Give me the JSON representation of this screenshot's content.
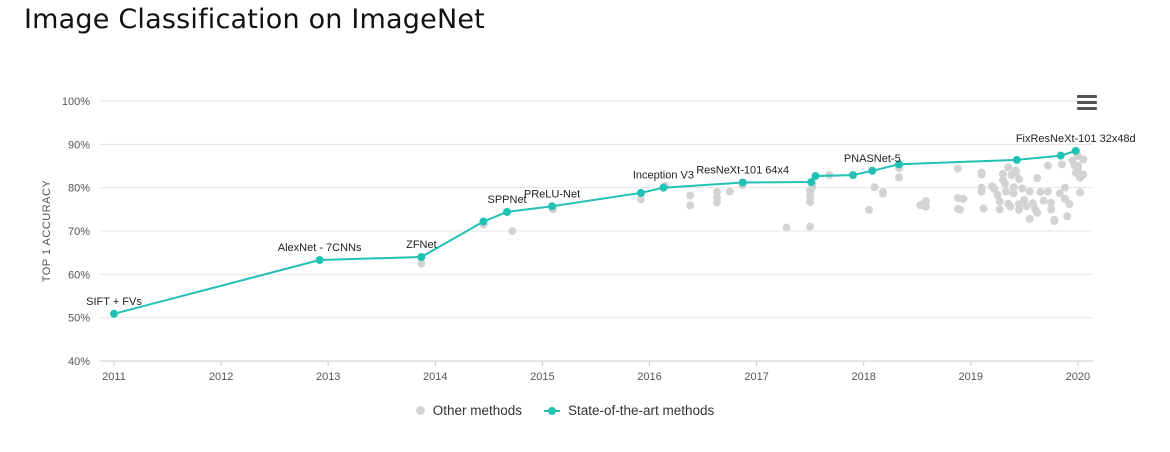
{
  "page": {
    "title": "Image Classification on ImageNet"
  },
  "colors": {
    "sota": "#21c1b6",
    "other": "#d3d3d3",
    "grid": "#e6e6e6",
    "axis_text": "#555555"
  },
  "icons": {
    "menu": "hamburger-menu-icon"
  },
  "chart_data": {
    "type": "scatter",
    "title": "Image Classification on ImageNet",
    "xlabel": "",
    "ylabel": "TOP 1 ACCURACY",
    "xlim": [
      2011,
      2020.15
    ],
    "ylim": [
      40,
      100
    ],
    "x_ticks": [
      "2011",
      "2012",
      "2013",
      "2014",
      "2015",
      "2016",
      "2017",
      "2018",
      "2019",
      "2020"
    ],
    "y_ticks": [
      "40%",
      "50%",
      "60%",
      "70%",
      "80%",
      "90%",
      "100%"
    ],
    "grid": true,
    "legend": {
      "position": "bottom-center",
      "entries": [
        "Other methods",
        "State-of-the-art methods"
      ]
    },
    "series": [
      {
        "name": "State-of-the-art methods",
        "kind": "line",
        "points": [
          {
            "x": 2011.0,
            "y": 50.9,
            "label": "SIFT + FVs"
          },
          {
            "x": 2012.92,
            "y": 63.3,
            "label": "AlexNet - 7CNNs"
          },
          {
            "x": 2013.87,
            "y": 64.0,
            "label": "ZFNet"
          },
          {
            "x": 2014.45,
            "y": 72.2,
            "label": ""
          },
          {
            "x": 2014.67,
            "y": 74.4,
            "label": "SPPNet"
          },
          {
            "x": 2015.09,
            "y": 75.7,
            "label": "PReLU-Net"
          },
          {
            "x": 2015.92,
            "y": 78.8,
            "label": ""
          },
          {
            "x": 2016.13,
            "y": 80.0,
            "label": "Inception V3"
          },
          {
            "x": 2016.87,
            "y": 81.2,
            "label": "ResNeXt-101 64x4"
          },
          {
            "x": 2017.51,
            "y": 81.3,
            "label": ""
          },
          {
            "x": 2017.55,
            "y": 82.7,
            "label": ""
          },
          {
            "x": 2017.9,
            "y": 82.9,
            "label": ""
          },
          {
            "x": 2018.08,
            "y": 83.9,
            "label": "PNASNet-5"
          },
          {
            "x": 2018.33,
            "y": 85.4,
            "label": ""
          },
          {
            "x": 2019.43,
            "y": 86.4,
            "label": ""
          },
          {
            "x": 2019.84,
            "y": 87.4,
            "label": ""
          },
          {
            "x": 2019.98,
            "y": 88.5,
            "label": "FixResNeXt-101 32x48d"
          }
        ]
      },
      {
        "name": "Other methods",
        "kind": "scatter",
        "points": [
          {
            "x": 2013.87,
            "y": 62.5
          },
          {
            "x": 2014.45,
            "y": 71.5
          },
          {
            "x": 2014.72,
            "y": 70.0
          },
          {
            "x": 2015.1,
            "y": 75.0
          },
          {
            "x": 2015.92,
            "y": 77.3
          },
          {
            "x": 2016.15,
            "y": 80.4
          },
          {
            "x": 2016.38,
            "y": 78.2
          },
          {
            "x": 2016.38,
            "y": 75.9
          },
          {
            "x": 2016.63,
            "y": 79.0
          },
          {
            "x": 2016.63,
            "y": 77.7
          },
          {
            "x": 2016.63,
            "y": 76.6
          },
          {
            "x": 2016.75,
            "y": 79.1
          },
          {
            "x": 2016.87,
            "y": 80.6
          },
          {
            "x": 2017.28,
            "y": 70.8
          },
          {
            "x": 2017.5,
            "y": 71.0
          },
          {
            "x": 2017.5,
            "y": 79.3
          },
          {
            "x": 2017.5,
            "y": 78.5
          },
          {
            "x": 2017.5,
            "y": 77.9
          },
          {
            "x": 2017.5,
            "y": 76.7
          },
          {
            "x": 2017.52,
            "y": 80.2
          },
          {
            "x": 2017.52,
            "y": 81.0
          },
          {
            "x": 2017.68,
            "y": 82.9
          },
          {
            "x": 2018.05,
            "y": 74.9
          },
          {
            "x": 2018.1,
            "y": 80.1
          },
          {
            "x": 2018.18,
            "y": 79.0
          },
          {
            "x": 2018.18,
            "y": 78.6
          },
          {
            "x": 2018.33,
            "y": 84.5
          },
          {
            "x": 2018.33,
            "y": 82.4
          },
          {
            "x": 2018.53,
            "y": 76.0
          },
          {
            "x": 2018.58,
            "y": 76.9
          },
          {
            "x": 2018.58,
            "y": 75.6
          },
          {
            "x": 2018.88,
            "y": 84.4
          },
          {
            "x": 2018.88,
            "y": 77.6
          },
          {
            "x": 2018.88,
            "y": 75.1
          },
          {
            "x": 2018.9,
            "y": 74.9
          },
          {
            "x": 2018.93,
            "y": 77.4
          },
          {
            "x": 2019.1,
            "y": 83.5
          },
          {
            "x": 2019.1,
            "y": 83.0
          },
          {
            "x": 2019.1,
            "y": 80.0
          },
          {
            "x": 2019.1,
            "y": 79.1
          },
          {
            "x": 2019.12,
            "y": 75.2
          },
          {
            "x": 2019.2,
            "y": 80.3
          },
          {
            "x": 2019.22,
            "y": 79.7
          },
          {
            "x": 2019.25,
            "y": 78.3
          },
          {
            "x": 2019.27,
            "y": 76.8
          },
          {
            "x": 2019.27,
            "y": 75.0
          },
          {
            "x": 2019.3,
            "y": 83.2
          },
          {
            "x": 2019.3,
            "y": 81.8
          },
          {
            "x": 2019.32,
            "y": 80.9
          },
          {
            "x": 2019.33,
            "y": 79.1
          },
          {
            "x": 2019.35,
            "y": 84.7
          },
          {
            "x": 2019.35,
            "y": 76.3
          },
          {
            "x": 2019.37,
            "y": 75.6
          },
          {
            "x": 2019.38,
            "y": 82.9
          },
          {
            "x": 2019.4,
            "y": 80.1
          },
          {
            "x": 2019.4,
            "y": 78.7
          },
          {
            "x": 2019.42,
            "y": 84.0
          },
          {
            "x": 2019.42,
            "y": 83.5
          },
          {
            "x": 2019.45,
            "y": 82.0
          },
          {
            "x": 2019.45,
            "y": 76.2
          },
          {
            "x": 2019.45,
            "y": 74.9
          },
          {
            "x": 2019.48,
            "y": 79.8
          },
          {
            "x": 2019.5,
            "y": 77.2
          },
          {
            "x": 2019.52,
            "y": 75.7
          },
          {
            "x": 2019.55,
            "y": 79.1
          },
          {
            "x": 2019.55,
            "y": 72.8
          },
          {
            "x": 2019.58,
            "y": 76.4
          },
          {
            "x": 2019.6,
            "y": 75.1
          },
          {
            "x": 2019.62,
            "y": 82.2
          },
          {
            "x": 2019.62,
            "y": 74.2
          },
          {
            "x": 2019.65,
            "y": 79.0
          },
          {
            "x": 2019.68,
            "y": 77.0
          },
          {
            "x": 2019.72,
            "y": 85.1
          },
          {
            "x": 2019.72,
            "y": 79.1
          },
          {
            "x": 2019.75,
            "y": 76.5
          },
          {
            "x": 2019.75,
            "y": 75.0
          },
          {
            "x": 2019.78,
            "y": 72.3
          },
          {
            "x": 2019.78,
            "y": 72.6
          },
          {
            "x": 2019.83,
            "y": 78.7
          },
          {
            "x": 2019.85,
            "y": 85.4
          },
          {
            "x": 2019.88,
            "y": 80.0
          },
          {
            "x": 2019.88,
            "y": 77.4
          },
          {
            "x": 2019.9,
            "y": 73.4
          },
          {
            "x": 2019.92,
            "y": 76.2
          },
          {
            "x": 2019.95,
            "y": 86.2
          },
          {
            "x": 2019.97,
            "y": 85.1
          },
          {
            "x": 2019.98,
            "y": 83.4
          },
          {
            "x": 2020.0,
            "y": 87.3
          },
          {
            "x": 2020.0,
            "y": 85.0
          },
          {
            "x": 2020.0,
            "y": 84.1
          },
          {
            "x": 2020.02,
            "y": 82.3
          },
          {
            "x": 2020.02,
            "y": 78.9
          },
          {
            "x": 2020.05,
            "y": 86.5
          },
          {
            "x": 2020.05,
            "y": 83.0
          }
        ]
      }
    ]
  }
}
